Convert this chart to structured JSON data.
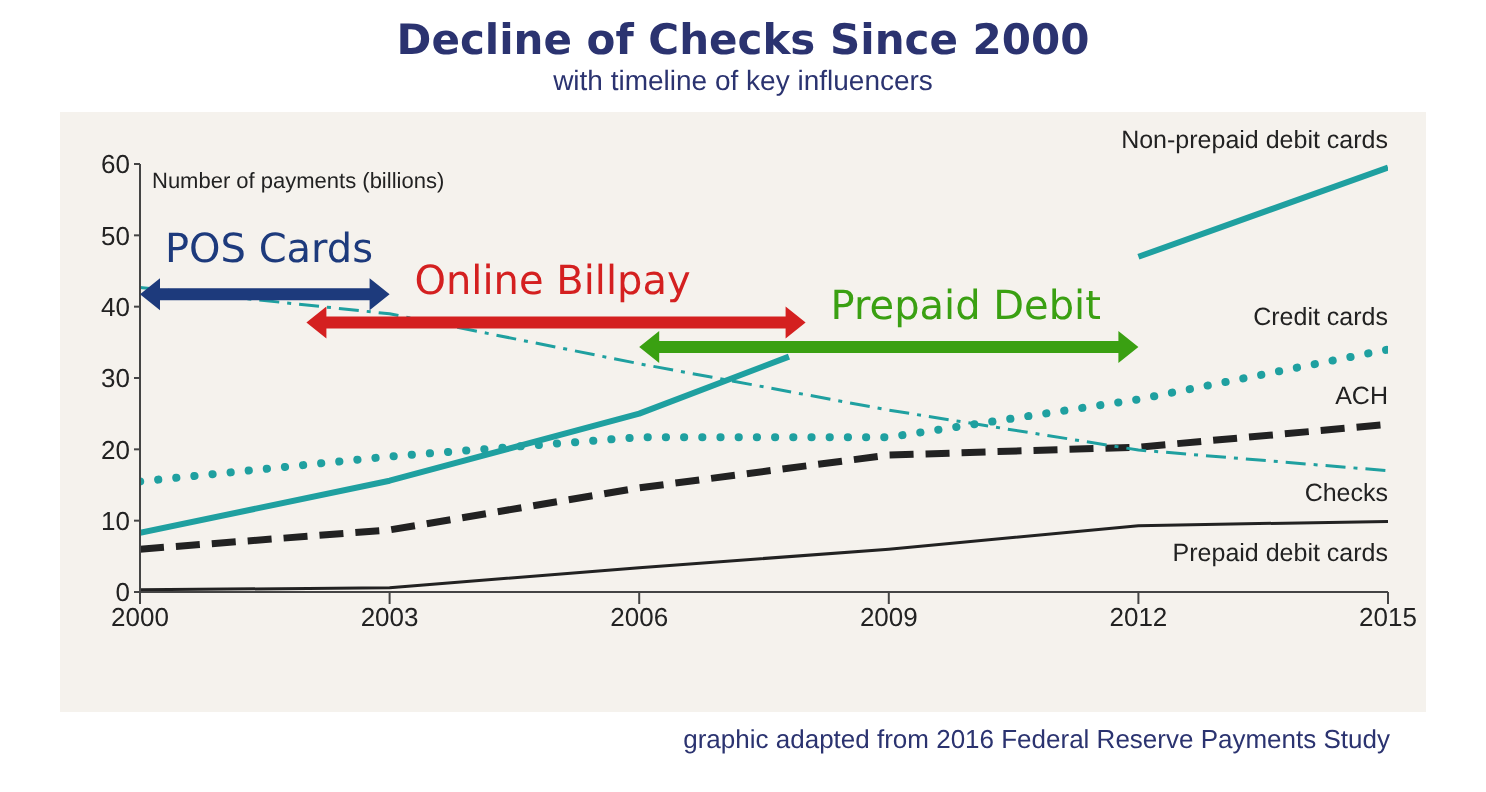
{
  "chart_data": {
    "type": "line",
    "title": "Decline of Checks Since 2000",
    "subtitle": "with timeline of key influencers",
    "ylabel": "Number of payments (billions)",
    "annotations": [
      "POS Cards",
      "Online Billpay",
      "Prepaid Debit",
      "graphic adapted from 2016 Federal Reserve Payments Study"
    ],
    "x": [
      2000,
      2003,
      2006,
      2009,
      2012,
      2015
    ],
    "series": [
      {
        "name": "Non-prepaid debit cards",
        "color": "#1fa0a0",
        "line_style": "solid",
        "x": [
          2000,
          2003,
          2006,
          2007.8,
          2009,
          2012,
          2015
        ],
        "values": [
          8.3,
          15.6,
          25,
          33,
          null,
          47,
          59.5
        ]
      },
      {
        "name": "Credit cards",
        "color": "#1fa0a0",
        "line_style": "dotted",
        "values": [
          15.5,
          19,
          21.7,
          21.7,
          27,
          34
        ]
      },
      {
        "name": "ACH",
        "color": "#222222",
        "line_style": "dashed",
        "values": [
          6,
          8.7,
          14.6,
          19.2,
          20.3,
          23.5
        ]
      },
      {
        "name": "Checks",
        "color": "#1fa0a0",
        "line_style": "dashdot",
        "values": [
          42.7,
          39,
          32,
          25.5,
          19.9,
          17
        ]
      },
      {
        "name": "Prepaid debit cards",
        "color": "#222222",
        "line_style": "solid",
        "values": [
          0.3,
          0.6,
          3.4,
          6,
          9.3,
          9.9
        ]
      }
    ],
    "xlim": [
      2000,
      2015
    ],
    "xticks": [
      2000,
      2003,
      2006,
      2009,
      2012,
      2015
    ],
    "ylim": [
      0,
      60
    ],
    "yticks": [
      0,
      10,
      20,
      30,
      40,
      50,
      60
    ],
    "grid": false,
    "legend": false,
    "marker": "none"
  }
}
